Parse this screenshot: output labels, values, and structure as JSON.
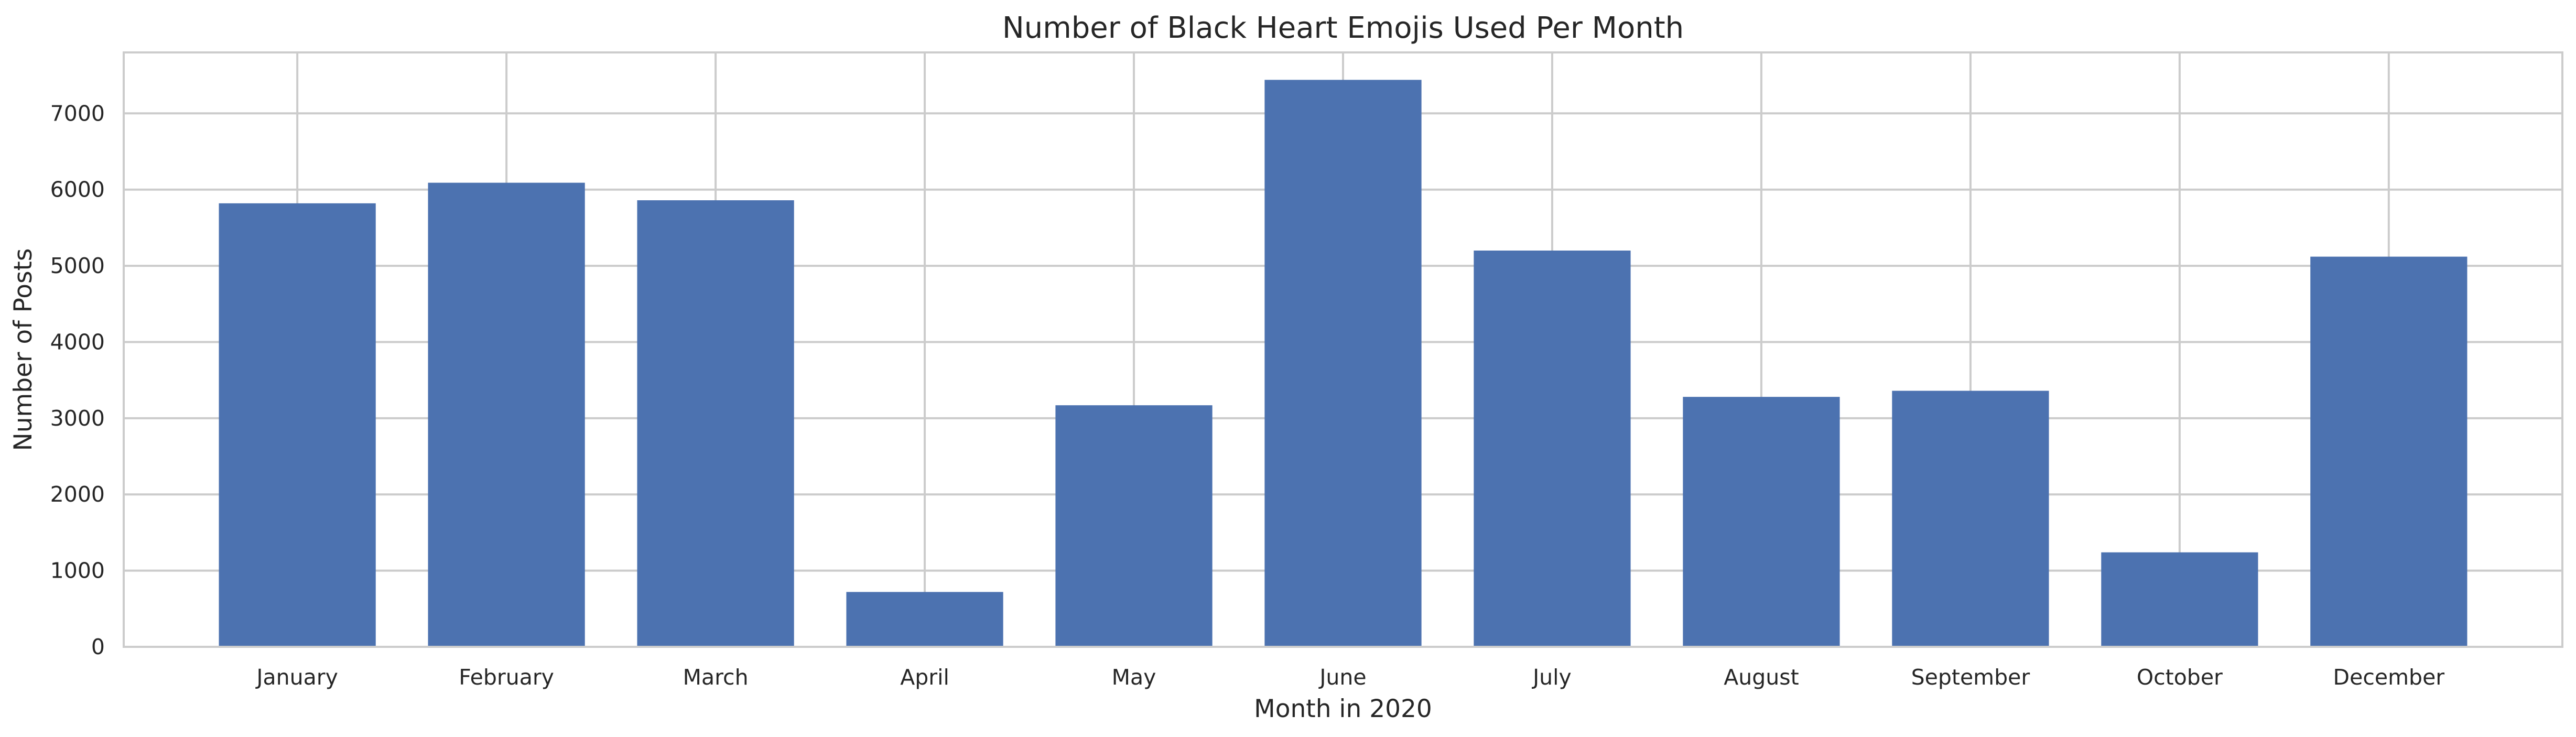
{
  "chart_data": {
    "type": "bar",
    "title": "Number of Black Heart Emojis Used Per Month",
    "xlabel": "Month in 2020",
    "ylabel": "Number of Posts",
    "categories": [
      "January",
      "February",
      "March",
      "April",
      "May",
      "June",
      "July",
      "August",
      "September",
      "October",
      "December"
    ],
    "values": [
      5820,
      6090,
      5860,
      720,
      3170,
      7440,
      5200,
      3280,
      3360,
      1240,
      5120
    ],
    "ylim": [
      0,
      7800
    ],
    "yticks": [
      "0",
      "1000",
      "2000",
      "3000",
      "4000",
      "5000",
      "6000",
      "7000"
    ],
    "grid": true,
    "bar_color": "#4c72b0",
    "grid_color": "#cccccc"
  }
}
